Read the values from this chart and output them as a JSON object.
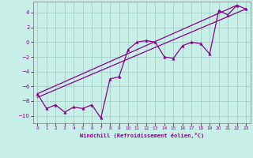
{
  "xlabel": "Windchill (Refroidissement éolien,°C)",
  "x_ticks": [
    0,
    1,
    2,
    3,
    4,
    5,
    6,
    7,
    8,
    9,
    10,
    11,
    12,
    13,
    14,
    15,
    16,
    17,
    18,
    19,
    20,
    21,
    22,
    23
  ],
  "ylim": [
    -11,
    5.5
  ],
  "xlim": [
    -0.5,
    23.5
  ],
  "yticks": [
    -10,
    -8,
    -6,
    -4,
    -2,
    0,
    2,
    4
  ],
  "line_color": "#880088",
  "bg_color": "#c8eee8",
  "grid_color": "#99ccbb",
  "data_line": {
    "x": [
      0,
      1,
      2,
      3,
      4,
      5,
      6,
      7,
      8,
      9,
      10,
      11,
      12,
      13,
      14,
      15,
      16,
      17,
      18,
      19,
      20,
      21,
      22,
      23
    ],
    "y": [
      -7.0,
      -9.0,
      -8.5,
      -9.5,
      -8.8,
      -9.0,
      -8.5,
      -10.3,
      -5.0,
      -4.7,
      -1.0,
      0.0,
      0.2,
      0.0,
      -2.0,
      -2.2,
      -0.5,
      0.0,
      -0.2,
      -1.6,
      4.3,
      3.7,
      5.0,
      4.5
    ]
  },
  "trend_line1": {
    "x": [
      0,
      22
    ],
    "y": [
      -7.0,
      5.0
    ]
  },
  "trend_line2": {
    "x": [
      0,
      23
    ],
    "y": [
      -7.5,
      4.5
    ]
  }
}
